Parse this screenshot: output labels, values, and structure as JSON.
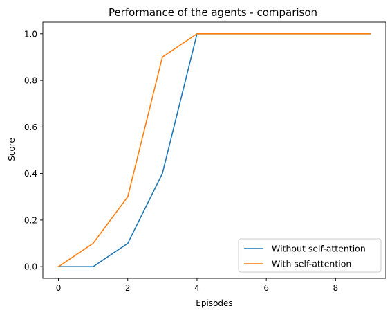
{
  "chart_data": {
    "type": "line",
    "title": "Performance of the agents - comparison",
    "xlabel": "Episodes",
    "ylabel": "Score",
    "x": [
      0,
      1,
      2,
      3,
      4,
      5,
      6,
      7,
      8,
      9
    ],
    "xlim": [
      -0.45,
      9.45
    ],
    "ylim": [
      -0.05,
      1.05
    ],
    "xticks": [
      0,
      2,
      4,
      6,
      8
    ],
    "xtick_labels": [
      "0",
      "2",
      "4",
      "6",
      "8"
    ],
    "yticks": [
      0.0,
      0.2,
      0.4,
      0.6,
      0.8,
      1.0
    ],
    "ytick_labels": [
      "0.0",
      "0.2",
      "0.4",
      "0.6",
      "0.8",
      "1.0"
    ],
    "grid": false,
    "legend_position": "lower-right",
    "series": [
      {
        "name": "Without self-attention",
        "color": "#1f77b4",
        "values": [
          0.0,
          0.0,
          0.1,
          0.4,
          1.0,
          1.0,
          1.0,
          1.0,
          1.0,
          1.0
        ]
      },
      {
        "name": "With self-attention",
        "color": "#ff7f0e",
        "values": [
          0.0,
          0.1,
          0.3,
          0.9,
          1.0,
          1.0,
          1.0,
          1.0,
          1.0,
          1.0
        ]
      }
    ]
  }
}
